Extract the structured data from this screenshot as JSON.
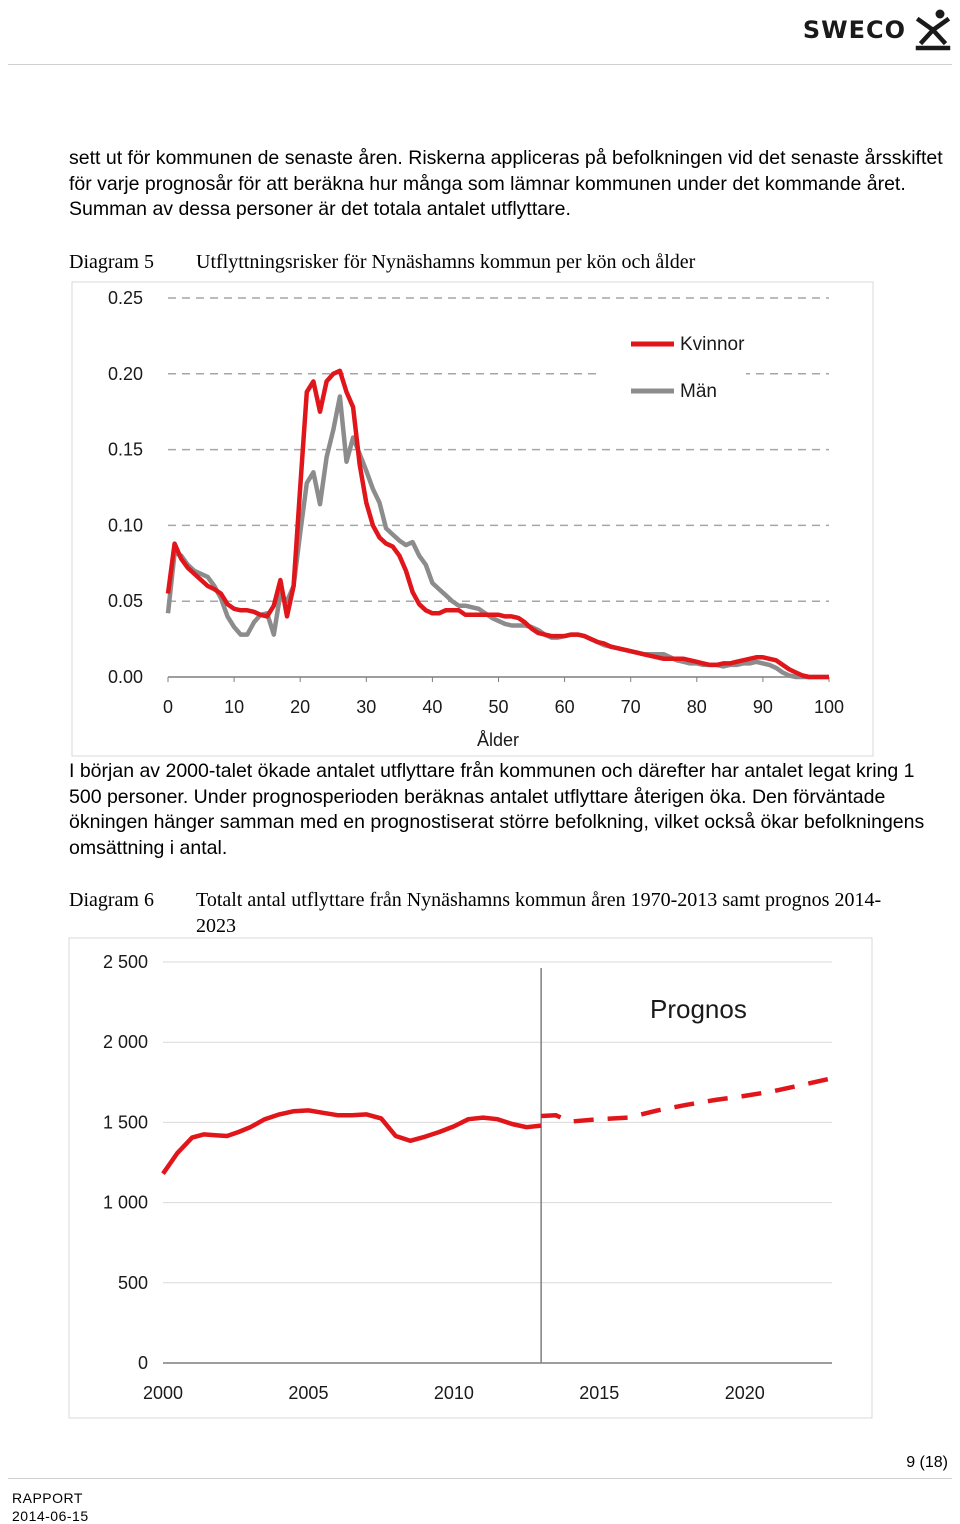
{
  "header": {
    "logo_text": "SWECO"
  },
  "intro_text": "sett ut för kommunen de senaste åren. Riskerna appliceras på befolkningen vid det senaste årsskiftet för varje prognosår för att beräkna hur många som lämnar kommunen under det kommande året. Summan av dessa personer är det totala antalet utflyttare.",
  "diagram5": {
    "number": "Diagram 5",
    "title": "Utflyttningsrisker för Nynäshamns kommun per kön och ålder"
  },
  "middle_text": "I början av 2000-talet ökade antalet utflyttare från kommunen och därefter har antalet legat kring 1 500 personer. Under prognosperioden beräknas antalet utflyttare återigen öka. Den förväntade ökningen hänger samman med en prognostiserat större befolkning, vilket också ökar befolkningens omsättning i antal.",
  "diagram6": {
    "number": "Diagram 6",
    "title": "Totalt antal utflyttare från Nynäshamns kommun åren 1970-2013 samt prognos 2014-2023"
  },
  "footer": {
    "page": "9 (18)",
    "doc_type": "RAPPORT",
    "date": "2014-06-15"
  },
  "colors": {
    "kvinnor": "#e0161b",
    "man": "#8c8c8c",
    "grid": "#a6a6a6"
  },
  "chart_data": [
    {
      "type": "line",
      "xlabel": "Ålder",
      "ylabel": "",
      "xlim": [
        0,
        100
      ],
      "ylim": [
        0,
        0.25
      ],
      "xticks": [
        "0",
        "10",
        "20",
        "30",
        "40",
        "50",
        "60",
        "70",
        "80",
        "90",
        "100"
      ],
      "yticks": [
        "0.00",
        "0.05",
        "0.10",
        "0.15",
        "0.20",
        "0.25"
      ],
      "grid": true,
      "legend": "top-right",
      "x": [
        0,
        1,
        2,
        3,
        4,
        5,
        6,
        7,
        8,
        9,
        10,
        11,
        12,
        13,
        14,
        15,
        16,
        17,
        18,
        19,
        20,
        21,
        22,
        23,
        24,
        25,
        26,
        27,
        28,
        29,
        30,
        31,
        32,
        33,
        34,
        35,
        36,
        37,
        38,
        39,
        40,
        41,
        42,
        43,
        44,
        45,
        46,
        47,
        48,
        49,
        50,
        51,
        52,
        53,
        54,
        55,
        56,
        57,
        58,
        59,
        60,
        61,
        62,
        63,
        64,
        65,
        66,
        67,
        68,
        69,
        70,
        71,
        72,
        73,
        74,
        75,
        76,
        77,
        78,
        79,
        80,
        81,
        82,
        83,
        84,
        85,
        86,
        87,
        88,
        89,
        90,
        91,
        92,
        93,
        94,
        95,
        96,
        97,
        98,
        99,
        100
      ],
      "series": [
        {
          "name": "Kvinnor",
          "color": "#e0161b",
          "values": [
            0.055,
            0.088,
            0.078,
            0.072,
            0.068,
            0.064,
            0.06,
            0.058,
            0.055,
            0.048,
            0.045,
            0.044,
            0.044,
            0.043,
            0.041,
            0.04,
            0.047,
            0.064,
            0.04,
            0.06,
            0.125,
            0.188,
            0.195,
            0.175,
            0.195,
            0.2,
            0.202,
            0.188,
            0.178,
            0.14,
            0.115,
            0.1,
            0.092,
            0.088,
            0.086,
            0.08,
            0.07,
            0.056,
            0.048,
            0.044,
            0.042,
            0.042,
            0.044,
            0.044,
            0.044,
            0.041,
            0.041,
            0.041,
            0.041,
            0.041,
            0.041,
            0.04,
            0.04,
            0.039,
            0.036,
            0.032,
            0.029,
            0.028,
            0.027,
            0.027,
            0.027,
            0.028,
            0.028,
            0.027,
            0.025,
            0.023,
            0.022,
            0.02,
            0.019,
            0.018,
            0.017,
            0.016,
            0.015,
            0.014,
            0.013,
            0.012,
            0.012,
            0.012,
            0.012,
            0.011,
            0.01,
            0.009,
            0.008,
            0.008,
            0.009,
            0.009,
            0.01,
            0.011,
            0.012,
            0.013,
            0.013,
            0.012,
            0.011,
            0.008,
            0.005,
            0.003,
            0.001,
            0,
            0,
            0,
            0
          ]
        },
        {
          "name": "Män",
          "color": "#8c8c8c",
          "values": [
            0.042,
            0.082,
            0.08,
            0.074,
            0.07,
            0.068,
            0.066,
            0.06,
            0.052,
            0.04,
            0.033,
            0.028,
            0.028,
            0.036,
            0.041,
            0.042,
            0.028,
            0.055,
            0.05,
            0.06,
            0.095,
            0.128,
            0.135,
            0.114,
            0.145,
            0.163,
            0.185,
            0.142,
            0.158,
            0.147,
            0.136,
            0.124,
            0.115,
            0.098,
            0.094,
            0.09,
            0.087,
            0.089,
            0.08,
            0.074,
            0.062,
            0.058,
            0.054,
            0.05,
            0.047,
            0.047,
            0.046,
            0.045,
            0.042,
            0.039,
            0.037,
            0.035,
            0.034,
            0.034,
            0.034,
            0.033,
            0.031,
            0.028,
            0.026,
            0.026,
            0.027,
            0.028,
            0.028,
            0.027,
            0.025,
            0.023,
            0.021,
            0.02,
            0.019,
            0.018,
            0.017,
            0.016,
            0.015,
            0.015,
            0.015,
            0.015,
            0.013,
            0.011,
            0.01,
            0.009,
            0.009,
            0.008,
            0.008,
            0.008,
            0.007,
            0.008,
            0.008,
            0.009,
            0.009,
            0.01,
            0.009,
            0.008,
            0.006,
            0.003,
            0.001,
            0,
            0,
            0,
            0,
            0,
            0
          ]
        }
      ]
    },
    {
      "type": "line",
      "title": "",
      "annotation": "Prognos",
      "xlabel": "",
      "ylabel": "",
      "xlim": [
        2000,
        2023
      ],
      "ylim": [
        0,
        2500
      ],
      "xticks": [
        "2000",
        "2005",
        "2010",
        "2015",
        "2020"
      ],
      "yticks": [
        "0",
        "500",
        "1 000",
        "1 500",
        "2 000",
        "2 500"
      ],
      "grid": true,
      "divider_x": 2013,
      "series": [
        {
          "name": "",
          "style": "solid",
          "color": "#e0161b",
          "x": [
            2000,
            2000.5,
            2001,
            2001.4,
            2001.8,
            2002.2,
            2002.6,
            2003,
            2003.5,
            2004,
            2004.5,
            2005,
            2005.5,
            2006,
            2006.5,
            2007,
            2007.5,
            2008,
            2008.5,
            2009,
            2009.5,
            2010,
            2010.5,
            2011,
            2011.5,
            2012,
            2012.5,
            2013
          ],
          "values": [
            1180,
            1310,
            1405,
            1425,
            1420,
            1415,
            1440,
            1470,
            1520,
            1550,
            1570,
            1575,
            1560,
            1545,
            1545,
            1550,
            1525,
            1415,
            1385,
            1410,
            1440,
            1475,
            1520,
            1530,
            1520,
            1490,
            1470,
            1480
          ]
        },
        {
          "name": "",
          "style": "dashed",
          "color": "#e0161b",
          "x": [
            2013,
            2013.5,
            2014,
            2015,
            2016,
            2017,
            2018,
            2019,
            2020,
            2021,
            2022,
            2023
          ],
          "values": [
            1540,
            1545,
            1505,
            1520,
            1530,
            1575,
            1610,
            1640,
            1665,
            1695,
            1735,
            1775
          ]
        }
      ]
    }
  ]
}
